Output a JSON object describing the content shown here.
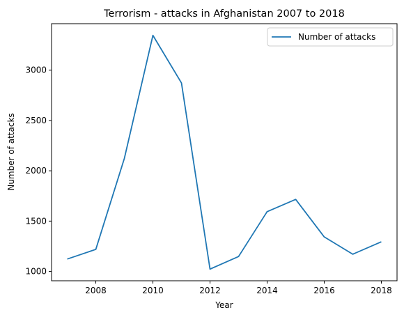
{
  "chart_data": {
    "type": "line",
    "title": "Terrorism - attacks in Afghanistan 2007 to 2018",
    "xlabel": "Year",
    "ylabel": "Number of attacks",
    "x": [
      2007,
      2008,
      2009,
      2010,
      2011,
      2012,
      2013,
      2014,
      2015,
      2016,
      2017,
      2018
    ],
    "series": [
      {
        "name": "Number of attacks",
        "color": "#1f77b4",
        "values": [
          1123,
          1219,
          2123,
          3346,
          2873,
          1023,
          1148,
          1594,
          1716,
          1343,
          1171,
          1294
        ]
      }
    ],
    "xlim": [
      2006.45,
      2018.55
    ],
    "ylim": [
      907,
      3462
    ],
    "xticks": [
      2008,
      2010,
      2012,
      2014,
      2016,
      2018
    ],
    "yticks": [
      1000,
      1500,
      2000,
      2500,
      3000
    ],
    "grid": false,
    "legend_position": "top-right"
  }
}
